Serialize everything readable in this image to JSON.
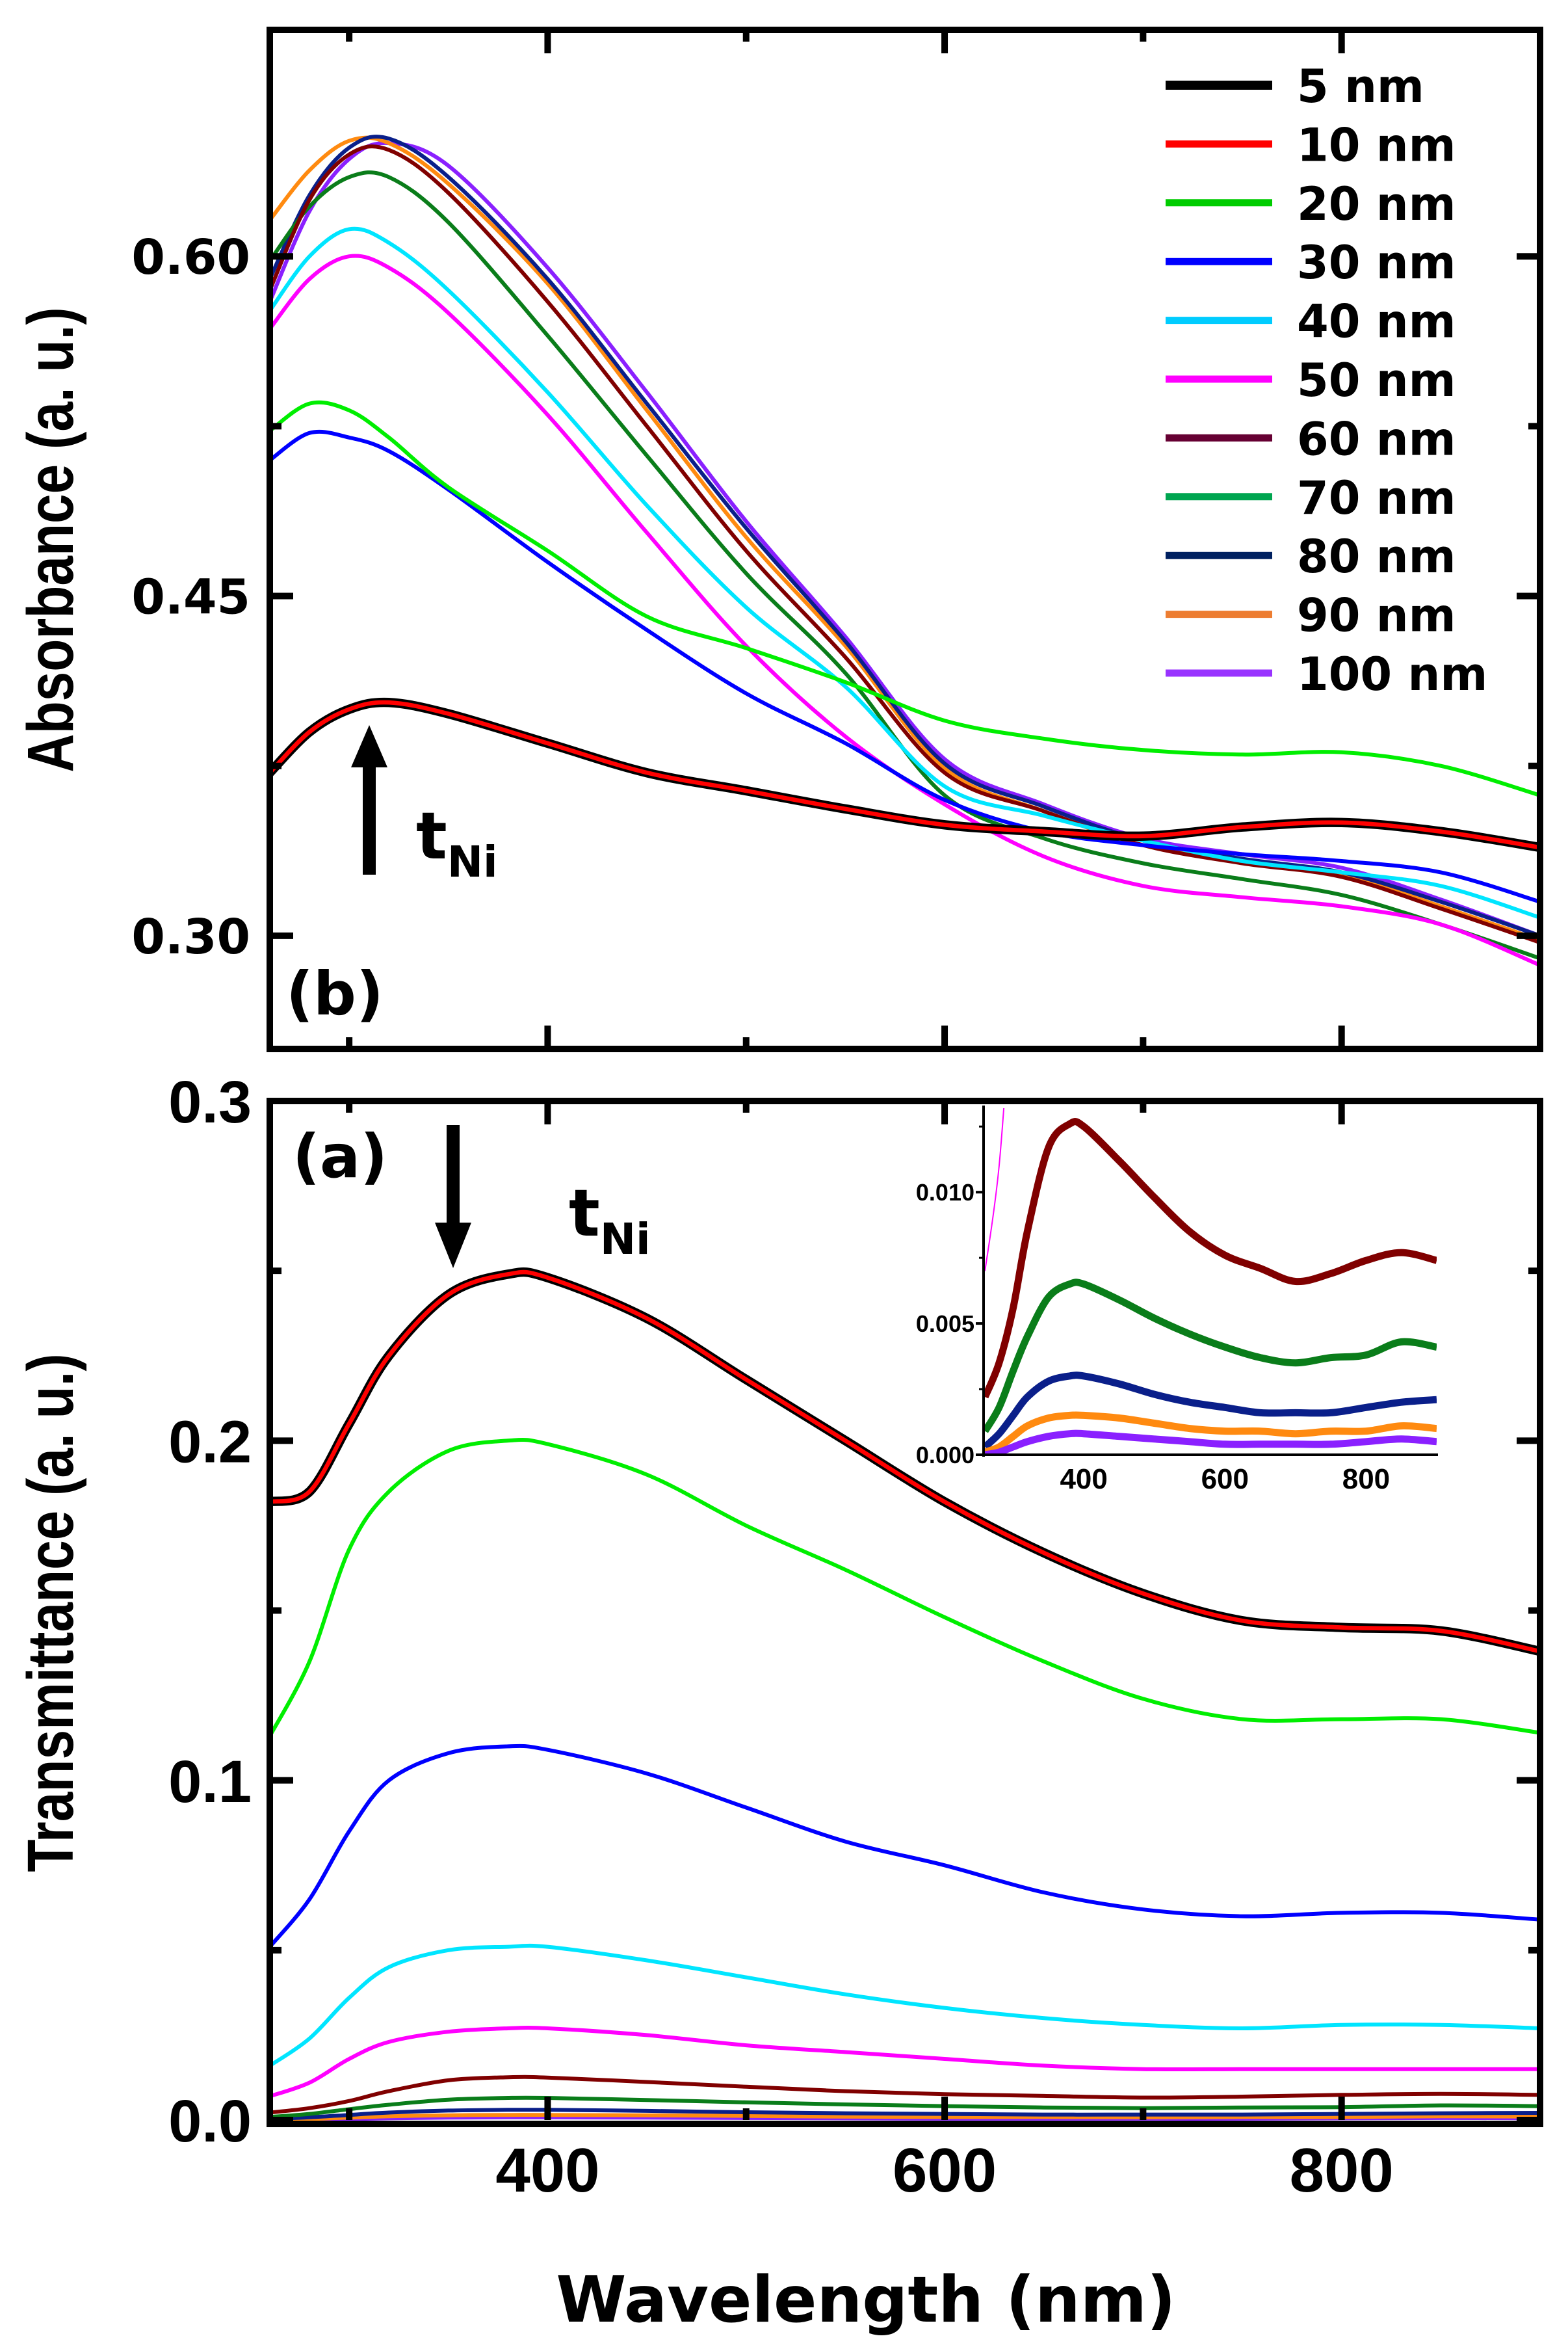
{
  "chart_data": [
    {
      "type": "line",
      "panel_label": "(b)",
      "ylabel": "Absorbance (a. u.)",
      "xlabel": "Wavelength (nm)",
      "xlim": [
        260,
        900
      ],
      "ylim": [
        0.25,
        0.7
      ],
      "x_ticks": [
        "400",
        "600",
        "800"
      ],
      "x_tick_values": [
        400,
        600,
        800
      ],
      "y_ticks": [
        "0.30",
        "0.45",
        "0.60"
      ],
      "y_tick_values": [
        0.3,
        0.45,
        0.6
      ],
      "annotation": {
        "text": "t",
        "sub": "Ni",
        "arrow": "up"
      },
      "legend_position": "top-right",
      "x": [
        260,
        280,
        300,
        320,
        350,
        400,
        450,
        500,
        550,
        600,
        650,
        700,
        750,
        800,
        850,
        900
      ],
      "series": [
        {
          "name": "5 nm",
          "color": "#000000",
          "values": [
            0.372,
            0.39,
            0.4,
            0.403,
            0.398,
            0.385,
            0.372,
            0.364,
            0.356,
            0.349,
            0.346,
            0.344,
            0.348,
            0.35,
            0.346,
            0.339
          ]
        },
        {
          "name": "10 nm",
          "color": "#ff0000",
          "values": [
            0.372,
            0.39,
            0.4,
            0.403,
            0.398,
            0.385,
            0.372,
            0.364,
            0.356,
            0.349,
            0.346,
            0.344,
            0.348,
            0.35,
            0.346,
            0.339
          ]
        },
        {
          "name": "20 nm",
          "color": "#00ee00",
          "legend_color": "#00cc00",
          "values": [
            0.523,
            0.535,
            0.532,
            0.52,
            0.498,
            0.47,
            0.441,
            0.427,
            0.412,
            0.395,
            0.387,
            0.382,
            0.38,
            0.381,
            0.375,
            0.362
          ]
        },
        {
          "name": "30 nm",
          "color": "#0000ff",
          "values": [
            0.51,
            0.522,
            0.52,
            0.514,
            0.497,
            0.465,
            0.435,
            0.407,
            0.385,
            0.36,
            0.346,
            0.34,
            0.336,
            0.333,
            0.328,
            0.315
          ]
        },
        {
          "name": "40 nm",
          "color": "#00e5ff",
          "legend_color": "#00ccff",
          "values": [
            0.576,
            0.6,
            0.612,
            0.606,
            0.585,
            0.54,
            0.49,
            0.445,
            0.41,
            0.366,
            0.353,
            0.342,
            0.333,
            0.328,
            0.322,
            0.308
          ]
        },
        {
          "name": "50 nm",
          "color": "#ff00ff",
          "values": [
            0.568,
            0.59,
            0.6,
            0.595,
            0.575,
            0.53,
            0.478,
            0.428,
            0.388,
            0.358,
            0.335,
            0.322,
            0.317,
            0.313,
            0.305,
            0.287
          ]
        },
        {
          "name": "60 nm",
          "color": "#800000",
          "legend_color": "#660033",
          "values": [
            0.585,
            0.625,
            0.645,
            0.647,
            0.628,
            0.58,
            0.525,
            0.47,
            0.423,
            0.372,
            0.355,
            0.34,
            0.332,
            0.326,
            0.312,
            0.297
          ]
        },
        {
          "name": "70 nm",
          "color": "#0a7d1a",
          "legend_color": "#00a550",
          "values": [
            0.598,
            0.622,
            0.635,
            0.635,
            0.615,
            0.565,
            0.512,
            0.46,
            0.416,
            0.362,
            0.343,
            0.332,
            0.325,
            0.318,
            0.305,
            0.29
          ]
        },
        {
          "name": "80 nm",
          "color": "#0a1f8a",
          "legend_color": "#002060",
          "values": [
            0.59,
            0.627,
            0.648,
            0.652,
            0.635,
            0.59,
            0.535,
            0.48,
            0.43,
            0.376,
            0.357,
            0.342,
            0.334,
            0.328,
            0.315,
            0.3
          ]
        },
        {
          "name": "90 nm",
          "color": "#ff8a10",
          "legend_color": "#ed7d31",
          "values": [
            0.616,
            0.638,
            0.651,
            0.65,
            0.632,
            0.588,
            0.532,
            0.476,
            0.428,
            0.374,
            0.355,
            0.34,
            0.333,
            0.327,
            0.313,
            0.298
          ]
        },
        {
          "name": "100 nm",
          "color": "#8a20ff",
          "legend_color": "#9933ff",
          "values": [
            0.58,
            0.62,
            0.643,
            0.65,
            0.64,
            0.595,
            0.54,
            0.483,
            0.432,
            0.378,
            0.358,
            0.343,
            0.336,
            0.33,
            0.316,
            0.3
          ]
        }
      ]
    },
    {
      "type": "line",
      "panel_label": "(a)",
      "ylabel": "Transmittance (a. u.)",
      "xlabel": "Wavelength (nm)",
      "xlim": [
        260,
        900
      ],
      "ylim": [
        0.0,
        0.3
      ],
      "x_ticks": [
        "400",
        "600",
        "800"
      ],
      "x_tick_values": [
        400,
        600,
        800
      ],
      "y_ticks": [
        "0.0",
        "0.1",
        "0.2",
        "0.3"
      ],
      "y_tick_values": [
        0.0,
        0.1,
        0.2,
        0.3
      ],
      "annotation": {
        "text": "t",
        "sub": "Ni",
        "arrow": "down"
      },
      "x": [
        260,
        280,
        300,
        320,
        350,
        380,
        400,
        450,
        500,
        550,
        600,
        650,
        700,
        750,
        800,
        850,
        900
      ],
      "series": [
        {
          "name": "5 nm",
          "color": "#000000",
          "values": [
            0.182,
            0.185,
            0.205,
            0.225,
            0.243,
            0.249,
            0.248,
            0.236,
            0.218,
            0.2,
            0.182,
            0.167,
            0.155,
            0.147,
            0.145,
            0.144,
            0.138
          ]
        },
        {
          "name": "10 nm",
          "color": "#ff0000",
          "values": [
            0.182,
            0.185,
            0.205,
            0.225,
            0.243,
            0.249,
            0.248,
            0.236,
            0.218,
            0.2,
            0.182,
            0.167,
            0.155,
            0.147,
            0.145,
            0.144,
            0.138
          ]
        },
        {
          "name": "20 nm",
          "color": "#00ee00",
          "values": [
            0.113,
            0.135,
            0.168,
            0.185,
            0.197,
            0.2,
            0.199,
            0.19,
            0.175,
            0.162,
            0.148,
            0.135,
            0.124,
            0.118,
            0.118,
            0.118,
            0.114
          ]
        },
        {
          "name": "30 nm",
          "color": "#0000ff",
          "values": [
            0.051,
            0.065,
            0.085,
            0.1,
            0.108,
            0.11,
            0.109,
            0.102,
            0.092,
            0.082,
            0.075,
            0.067,
            0.062,
            0.06,
            0.061,
            0.061,
            0.059
          ]
        },
        {
          "name": "40 nm",
          "color": "#00e5ff",
          "values": [
            0.016,
            0.024,
            0.036,
            0.045,
            0.05,
            0.051,
            0.051,
            0.047,
            0.042,
            0.037,
            0.033,
            0.03,
            0.028,
            0.027,
            0.028,
            0.028,
            0.027
          ]
        },
        {
          "name": "50 nm",
          "color": "#ff00ff",
          "values": [
            0.007,
            0.011,
            0.018,
            0.023,
            0.026,
            0.027,
            0.027,
            0.025,
            0.022,
            0.02,
            0.018,
            0.016,
            0.015,
            0.015,
            0.015,
            0.015,
            0.015
          ]
        },
        {
          "name": "60 nm",
          "color": "#800000",
          "values": [
            0.0022,
            0.0035,
            0.0056,
            0.0085,
            0.0117,
            0.0126,
            0.0125,
            0.0112,
            0.0098,
            0.0085,
            0.0076,
            0.0071,
            0.0066,
            0.0069,
            0.0074,
            0.0077,
            0.0074
          ]
        },
        {
          "name": "70 nm",
          "color": "#0a7d1a",
          "values": [
            0.0009,
            0.0018,
            0.0032,
            0.0045,
            0.006,
            0.0065,
            0.0065,
            0.0059,
            0.0052,
            0.0046,
            0.0041,
            0.0037,
            0.0035,
            0.0037,
            0.0038,
            0.0043,
            0.0041
          ]
        },
        {
          "name": "80 nm",
          "color": "#0a1f8a",
          "values": [
            0.0003,
            0.0008,
            0.0015,
            0.0022,
            0.0028,
            0.003,
            0.003,
            0.0027,
            0.0023,
            0.002,
            0.0018,
            0.0016,
            0.0016,
            0.0016,
            0.0018,
            0.002,
            0.0021
          ]
        },
        {
          "name": "90 nm",
          "color": "#ff8a10",
          "values": [
            0.0001,
            0.0003,
            0.0007,
            0.0011,
            0.0014,
            0.0015,
            0.0015,
            0.0014,
            0.0012,
            0.001,
            0.0009,
            0.0009,
            0.0008,
            0.0009,
            0.0009,
            0.0011,
            0.001
          ]
        },
        {
          "name": "100 nm",
          "color": "#8a20ff",
          "values": [
            0.0,
            0.0001,
            0.0003,
            0.0005,
            0.0007,
            0.0008,
            0.0008,
            0.0007,
            0.0006,
            0.0005,
            0.0004,
            0.0004,
            0.0004,
            0.0004,
            0.0005,
            0.0006,
            0.0005
          ]
        }
      ],
      "inset": {
        "xlim": [
          258,
          900
        ],
        "ylim": [
          0.0,
          0.0132
        ],
        "x_ticks": [
          "400",
          "600",
          "800"
        ],
        "x_tick_values": [
          400,
          600,
          800
        ],
        "y_ticks": [
          "0.000",
          "0.005",
          "0.010"
        ],
        "y_tick_values": [
          0.0,
          0.005,
          0.01
        ],
        "series_shown": [
          "50 nm",
          "60 nm",
          "70 nm",
          "80 nm",
          "90 nm",
          "100 nm"
        ]
      }
    }
  ],
  "xlabel": "Wavelength (nm)"
}
